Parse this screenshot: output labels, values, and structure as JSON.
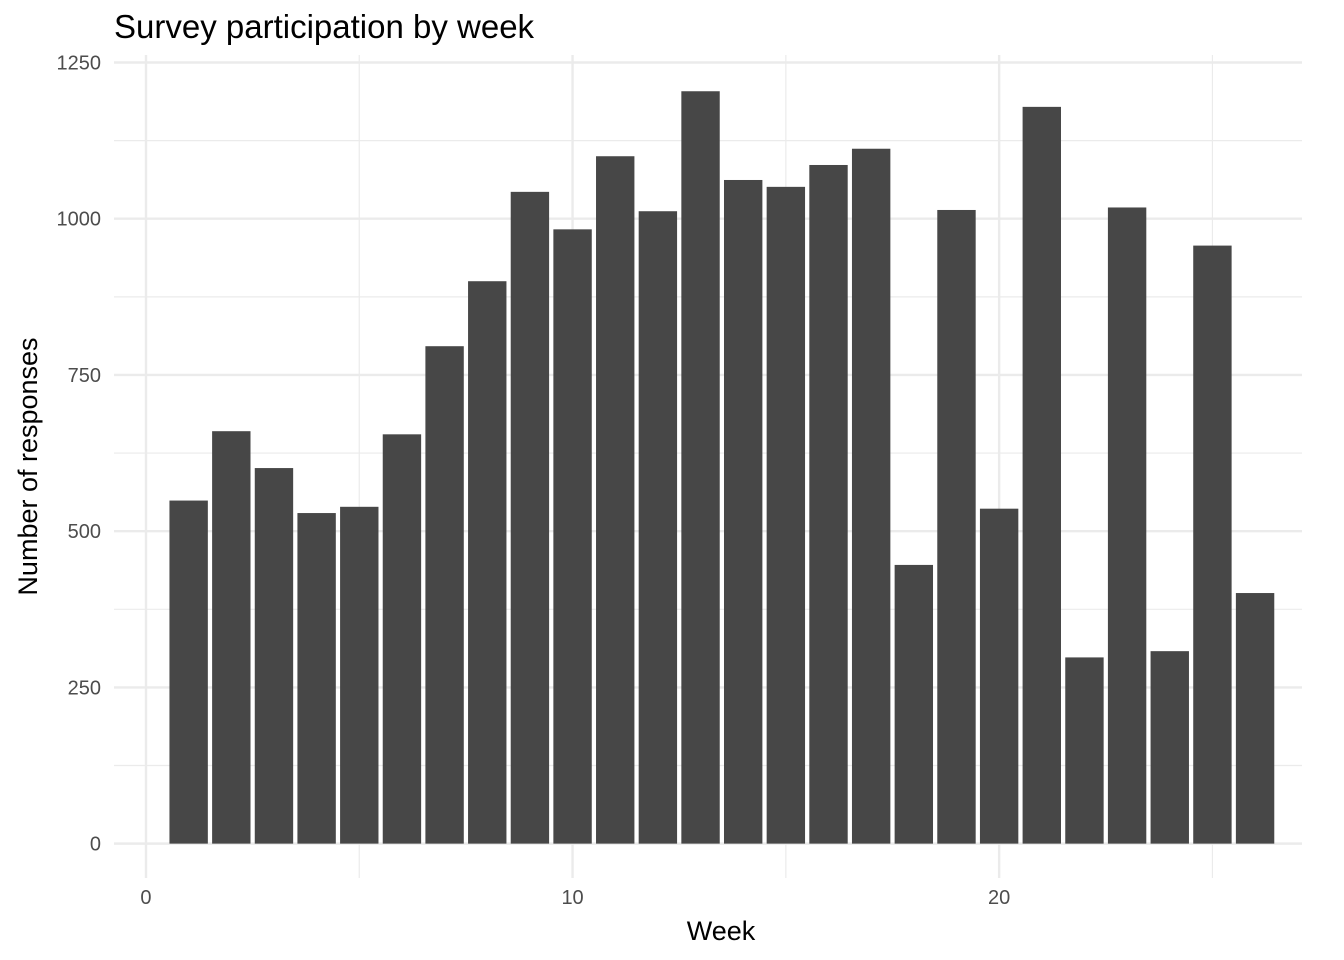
{
  "chart_data": {
    "type": "bar",
    "title": "Survey participation by week",
    "xlabel": "Week",
    "ylabel": "Number of responses",
    "x": [
      1,
      2,
      3,
      4,
      5,
      6,
      7,
      8,
      9,
      10,
      11,
      12,
      13,
      14,
      15,
      16,
      17,
      18,
      19,
      20,
      21,
      22,
      23,
      24,
      25,
      26
    ],
    "values": [
      549,
      660,
      601,
      529,
      539,
      655,
      796,
      900,
      1043,
      983,
      1100,
      1012,
      1204,
      1062,
      1051,
      1086,
      1112,
      446,
      1014,
      536,
      1179,
      298,
      1018,
      308,
      957,
      401
    ],
    "xlim": [
      -0.75,
      27.1
    ],
    "ylim": [
      -55,
      1262
    ],
    "xticks": [
      0,
      10,
      20
    ],
    "xtick_labels": [
      "0",
      "10",
      "20"
    ],
    "yticks": [
      0,
      250,
      500,
      750,
      1000,
      1250
    ],
    "ytick_labels": [
      "0",
      "250",
      "500",
      "750",
      "1000",
      "1250"
    ],
    "grid": true,
    "bar_color": "#474747",
    "grid_color": "#ebebeb"
  }
}
